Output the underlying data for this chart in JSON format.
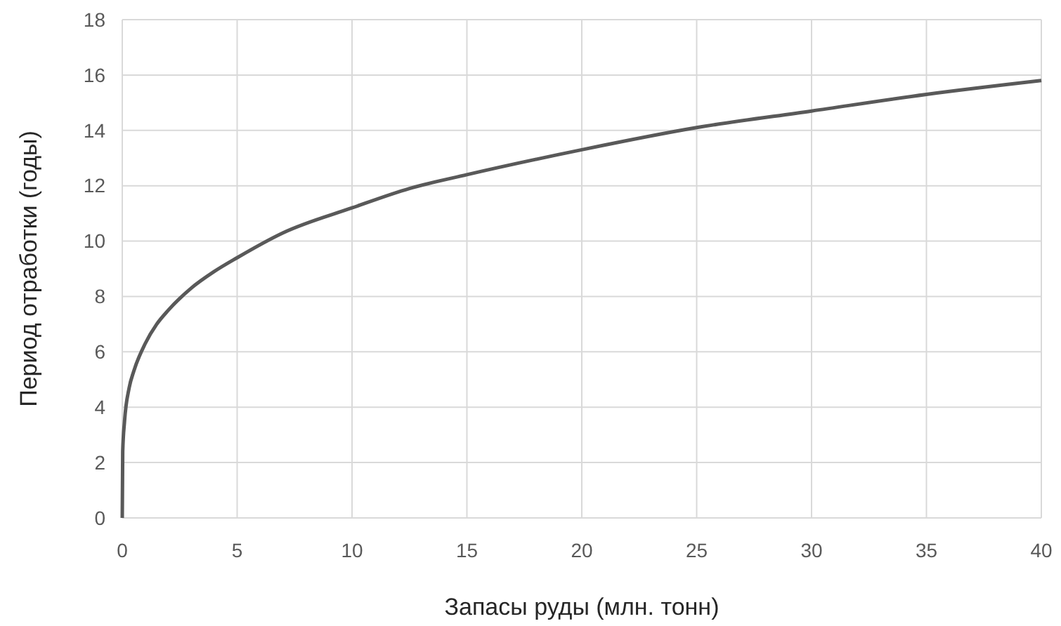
{
  "chart_data": {
    "type": "line",
    "xlabel": "Запасы руды (млн. тонн)",
    "ylabel": "Период отработки (годы)",
    "x": [
      0,
      0.02,
      0.1,
      0.3,
      0.5,
      1,
      1.5,
      2,
      3,
      4,
      5,
      7,
      10,
      12.5,
      15,
      20,
      25,
      30,
      35,
      40
    ],
    "series": [
      {
        "color": "#595959",
        "values": [
          0,
          2.4,
          3.5,
          4.7,
          5.3,
          6.3,
          7.0,
          7.5,
          8.3,
          8.9,
          9.4,
          10.3,
          11.2,
          11.9,
          12.4,
          13.3,
          14.1,
          14.7,
          15.3,
          15.8
        ]
      }
    ],
    "xlim": [
      0,
      40
    ],
    "xticks": [
      0,
      5,
      10,
      15,
      20,
      25,
      30,
      35,
      40
    ],
    "ylim": [
      0,
      18
    ],
    "yticks": [
      0,
      2,
      4,
      6,
      8,
      10,
      12,
      14,
      16,
      18
    ],
    "grid": true,
    "marker": "none",
    "line_style": "solid"
  }
}
